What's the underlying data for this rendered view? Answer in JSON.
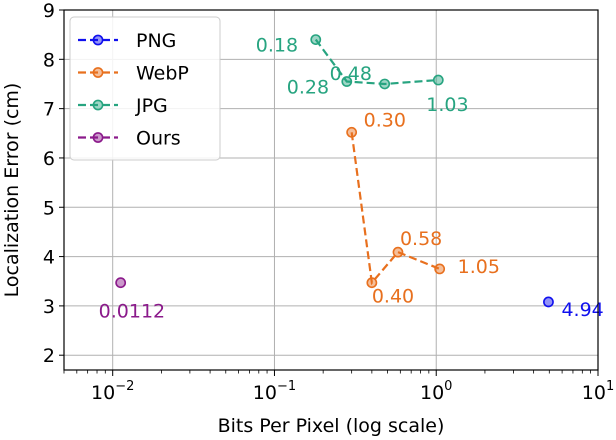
{
  "chart_data": {
    "type": "scatter",
    "title": "",
    "xlabel": "Bits Per Pixel (log scale)",
    "ylabel": "Localization Error (cm)",
    "xscale": "log",
    "xlim": [
      0.005,
      10
    ],
    "ylim": [
      1.7,
      9
    ],
    "x_ticks": [
      {
        "value": 0.01,
        "base": "10",
        "exp": "−2"
      },
      {
        "value": 0.1,
        "base": "10",
        "exp": "−1"
      },
      {
        "value": 1,
        "base": "10",
        "exp": "0"
      },
      {
        "value": 10,
        "base": "10",
        "exp": "1"
      }
    ],
    "y_ticks": [
      "2",
      "3",
      "4",
      "5",
      "6",
      "7",
      "8",
      "9"
    ],
    "grid": true,
    "legend_position": "top-left",
    "series": [
      {
        "name": "PNG",
        "color": "#1010ee",
        "points": [
          {
            "x": 4.94,
            "y": 3.08,
            "label": "4.94"
          }
        ]
      },
      {
        "name": "WebP",
        "color": "#e8701e",
        "points": [
          {
            "x": 0.3,
            "y": 6.52,
            "label": "0.30"
          },
          {
            "x": 0.4,
            "y": 3.47,
            "label": "0.40"
          },
          {
            "x": 0.58,
            "y": 4.09,
            "label": "0.58"
          },
          {
            "x": 1.05,
            "y": 3.75,
            "label": "1.05"
          }
        ]
      },
      {
        "name": "JPG",
        "color": "#27a480",
        "points": [
          {
            "x": 0.18,
            "y": 8.4,
            "label": "0.18"
          },
          {
            "x": 0.28,
            "y": 7.55,
            "label": "0.28"
          },
          {
            "x": 0.48,
            "y": 7.5,
            "label": "0.48"
          },
          {
            "x": 1.03,
            "y": 7.58,
            "label": "1.03"
          }
        ]
      },
      {
        "name": "Ours",
        "color": "#8b1a8b",
        "points": [
          {
            "x": 0.0112,
            "y": 3.47,
            "label": "0.0112"
          }
        ]
      }
    ]
  }
}
